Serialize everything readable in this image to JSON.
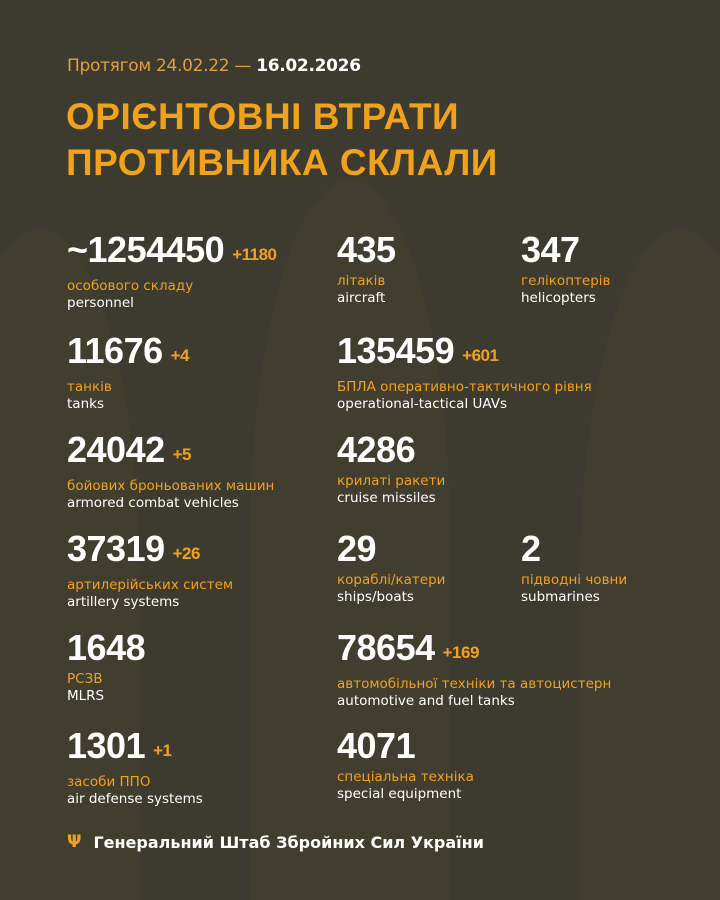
{
  "header": {
    "period_prefix": "Протягом 24.02.22 —",
    "period_end": "16.02.2026",
    "title_line1": "ОРІЄНТОВНІ ВТРАТИ",
    "title_line2": "ПРОТИВНИКА СКЛАЛИ"
  },
  "stats": [
    {
      "value": "~1254450",
      "delta": "+1180",
      "ua": "особового складу",
      "en": "personnel"
    },
    {
      "value": "435",
      "delta": "",
      "ua": "літаків",
      "en": "aircraft"
    },
    {
      "value": "347",
      "delta": "",
      "ua": "гелікоптерів",
      "en": "helicopters"
    },
    {
      "value": "11676",
      "delta": "+4",
      "ua": "танків",
      "en": "tanks"
    },
    {
      "value": "135459",
      "delta": "+601",
      "ua": "БПЛА оперативно-тактичного рівня",
      "en": "operational-tactical UAVs"
    },
    {
      "value": "24042",
      "delta": "+5",
      "ua": "бойових броньованих машин",
      "en": "armored combat vehicles"
    },
    {
      "value": "4286",
      "delta": "",
      "ua": "крилаті ракети",
      "en": "cruise missiles"
    },
    {
      "value": "37319",
      "delta": "+26",
      "ua": "артилерійських систем",
      "en": "artillery systems"
    },
    {
      "value": "29",
      "delta": "",
      "ua": "кораблі/катери",
      "en": "ships/boats"
    },
    {
      "value": "2",
      "delta": "",
      "ua": "підводні човни",
      "en": "submarines"
    },
    {
      "value": "1648",
      "delta": "",
      "ua": "РСЗВ",
      "en": "MLRS"
    },
    {
      "value": "78654",
      "delta": "+169",
      "ua": "автомобільної техніки та автоцистерн",
      "en": "automotive and fuel tanks"
    },
    {
      "value": "1301",
      "delta": "+1",
      "ua": "засоби ППО",
      "en": "air defense systems"
    },
    {
      "value": "4071",
      "delta": "",
      "ua": "спеціальна техніка",
      "en": "special equipment"
    }
  ],
  "footer": {
    "icon": "trident-icon",
    "text": "Генеральний Штаб Збройних Сил України"
  },
  "colors": {
    "background": "#3d3a2f",
    "accent": "#f0a21c",
    "text": "#ffffff"
  }
}
